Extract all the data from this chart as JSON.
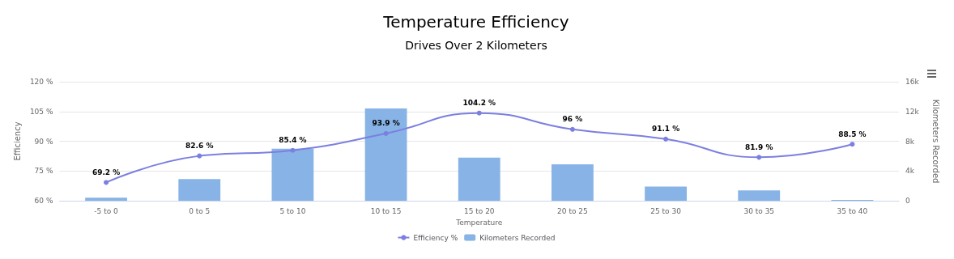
{
  "chart_data": {
    "type": "bar",
    "title": "Temperature Efficiency",
    "subtitle": "Drives Over 2 Kilometers",
    "xlabel": "Temperature",
    "ylabel": "Efficiency",
    "y2label": "Kilometers Recorded",
    "categories": [
      "-5 to 0",
      "0 to 5",
      "5 to 10",
      "10 to 15",
      "15 to 20",
      "20 to 25",
      "25 to 30",
      "30 to 35",
      "35 to 40"
    ],
    "series": [
      {
        "name": "Efficiency %",
        "type": "line",
        "color": "#7b7fe0",
        "marker": "circle",
        "values": [
          69.2,
          82.6,
          85.4,
          93.9,
          104.2,
          96,
          91.1,
          81.9,
          88.5
        ],
        "value_labels": [
          "69.2 %",
          "82.6 %",
          "85.4 %",
          "93.9 %",
          "104.2 %",
          "96 %",
          "91.1 %",
          "81.9 %",
          "88.5 %"
        ]
      },
      {
        "name": "Kilometers Recorded",
        "axis": "y2",
        "color": "#88b3e6",
        "values": [
          400,
          2900,
          7000,
          12400,
          5800,
          4900,
          1900,
          1400,
          100
        ]
      }
    ],
    "ylim": [
      60,
      120
    ],
    "yticks": [
      {
        "value": 60,
        "label": "60 %"
      },
      {
        "value": 75,
        "label": "75 %"
      },
      {
        "value": 90,
        "label": "90 %"
      },
      {
        "value": 105,
        "label": "105 %"
      },
      {
        "value": 120,
        "label": "120 %"
      }
    ],
    "y2lim": [
      0,
      16000
    ],
    "y2ticks": [
      {
        "value": 0,
        "label": "0"
      },
      {
        "value": 4000,
        "label": "4k"
      },
      {
        "value": 8000,
        "label": "8k"
      },
      {
        "value": 12000,
        "label": "12k"
      },
      {
        "value": 16000,
        "label": "16k"
      }
    ],
    "grid": "y",
    "legend": "bottom"
  }
}
